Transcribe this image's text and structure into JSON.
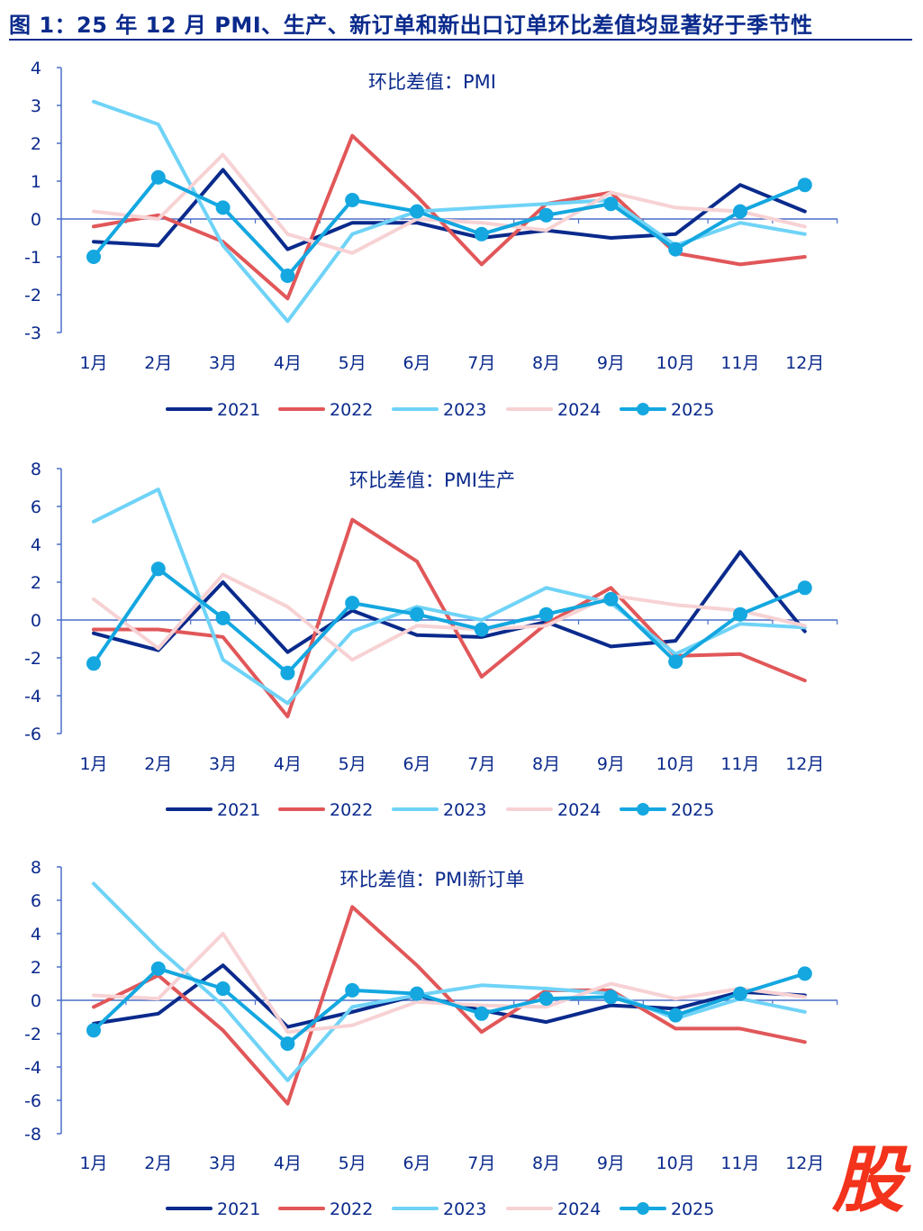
{
  "figure_title": "图 1：25 年 12 月 PMI、生产、新订单和新出口订单环比差值均显著好于季节性",
  "watermark": "股",
  "colors": {
    "2021": "#0a2a8c",
    "2022": "#e15759",
    "2023": "#6fd3f7",
    "2024": "#f7d2d4",
    "2025": "#14a7e0",
    "axis": "#4a6fc8",
    "text": "#0a2a8c"
  },
  "chart_data": [
    {
      "type": "line",
      "title": "环比差值：PMI",
      "categories": [
        "1月",
        "2月",
        "3月",
        "4月",
        "5月",
        "6月",
        "7月",
        "8月",
        "9月",
        "10月",
        "11月",
        "12月"
      ],
      "ylim": [
        -3,
        4
      ],
      "yticks": [
        4,
        3,
        2,
        1,
        0,
        -1,
        -2,
        -3
      ],
      "series": [
        {
          "name": "2021",
          "values": [
            -0.6,
            -0.7,
            1.3,
            -0.8,
            -0.1,
            -0.1,
            -0.5,
            -0.3,
            -0.5,
            -0.4,
            0.9,
            0.2
          ]
        },
        {
          "name": "2022",
          "values": [
            -0.2,
            0.1,
            -0.6,
            -2.1,
            2.2,
            0.6,
            -1.2,
            0.4,
            0.7,
            -0.9,
            -1.2,
            -1.0
          ]
        },
        {
          "name": "2023",
          "values": [
            3.1,
            2.5,
            -0.7,
            -2.7,
            -0.4,
            0.2,
            0.3,
            0.4,
            0.5,
            -0.7,
            -0.1,
            -0.4
          ]
        },
        {
          "name": "2024",
          "values": [
            0.2,
            0.0,
            1.7,
            -0.4,
            -0.9,
            0.0,
            -0.1,
            -0.3,
            0.7,
            0.3,
            0.2,
            -0.2
          ]
        },
        {
          "name": "2025",
          "values": [
            -1.0,
            1.1,
            0.3,
            -1.5,
            0.5,
            0.2,
            -0.4,
            0.1,
            0.4,
            -0.8,
            0.2,
            0.9
          ],
          "markers": true
        }
      ]
    },
    {
      "type": "line",
      "title": "环比差值：PMI生产",
      "categories": [
        "1月",
        "2月",
        "3月",
        "4月",
        "5月",
        "6月",
        "7月",
        "8月",
        "9月",
        "10月",
        "11月",
        "12月"
      ],
      "ylim": [
        -6,
        8
      ],
      "yticks": [
        8,
        6,
        4,
        2,
        0,
        -2,
        -4,
        -6
      ],
      "series": [
        {
          "name": "2021",
          "values": [
            -0.7,
            -1.6,
            2.0,
            -1.7,
            0.5,
            -0.8,
            -0.9,
            -0.1,
            -1.4,
            -1.1,
            3.6,
            -0.6
          ]
        },
        {
          "name": "2022",
          "values": [
            -0.5,
            -0.5,
            -0.9,
            -5.1,
            5.3,
            3.1,
            -3.0,
            -0.2,
            1.7,
            -1.9,
            -1.8,
            -3.2
          ]
        },
        {
          "name": "2023",
          "values": [
            5.2,
            6.9,
            -2.1,
            -4.4,
            -0.6,
            0.7,
            0.0,
            1.7,
            0.9,
            -1.8,
            -0.2,
            -0.4
          ]
        },
        {
          "name": "2024",
          "values": [
            1.1,
            -1.5,
            2.4,
            0.7,
            -2.1,
            -0.3,
            -0.5,
            -0.3,
            1.3,
            0.8,
            0.5,
            -0.3
          ]
        },
        {
          "name": "2025",
          "values": [
            -2.3,
            2.7,
            0.1,
            -2.8,
            0.9,
            0.3,
            -0.5,
            0.3,
            1.1,
            -2.2,
            0.3,
            1.7
          ],
          "markers": true
        }
      ]
    },
    {
      "type": "line",
      "title": "环比差值：PMI新订单",
      "categories": [
        "1月",
        "2月",
        "3月",
        "4月",
        "5月",
        "6月",
        "7月",
        "8月",
        "9月",
        "10月",
        "11月",
        "12月"
      ],
      "ylim": [
        -8,
        8
      ],
      "yticks": [
        8,
        6,
        4,
        2,
        0,
        -2,
        -4,
        -6,
        -8
      ],
      "series": [
        {
          "name": "2021",
          "values": [
            -1.4,
            -0.8,
            2.1,
            -1.6,
            -0.7,
            0.3,
            -0.6,
            -1.3,
            -0.3,
            -0.5,
            0.5,
            0.3
          ]
        },
        {
          "name": "2022",
          "values": [
            -0.4,
            1.5,
            -1.8,
            -6.2,
            5.6,
            2.1,
            -1.9,
            0.6,
            0.6,
            -1.7,
            -1.7,
            -2.5
          ]
        },
        {
          "name": "2023",
          "values": [
            7.0,
            3.1,
            -0.3,
            -4.8,
            -0.4,
            0.3,
            0.9,
            0.7,
            0.4,
            -1.1,
            0.1,
            -0.7
          ]
        },
        {
          "name": "2024",
          "values": [
            0.3,
            0.1,
            4.0,
            -1.9,
            -1.5,
            -0.1,
            -0.3,
            -0.4,
            1.0,
            0.1,
            0.7,
            0.2
          ]
        },
        {
          "name": "2025",
          "values": [
            -1.8,
            1.9,
            0.7,
            -2.6,
            0.6,
            0.4,
            -0.8,
            0.1,
            0.2,
            -0.9,
            0.4,
            1.6
          ],
          "markers": true
        }
      ]
    }
  ]
}
